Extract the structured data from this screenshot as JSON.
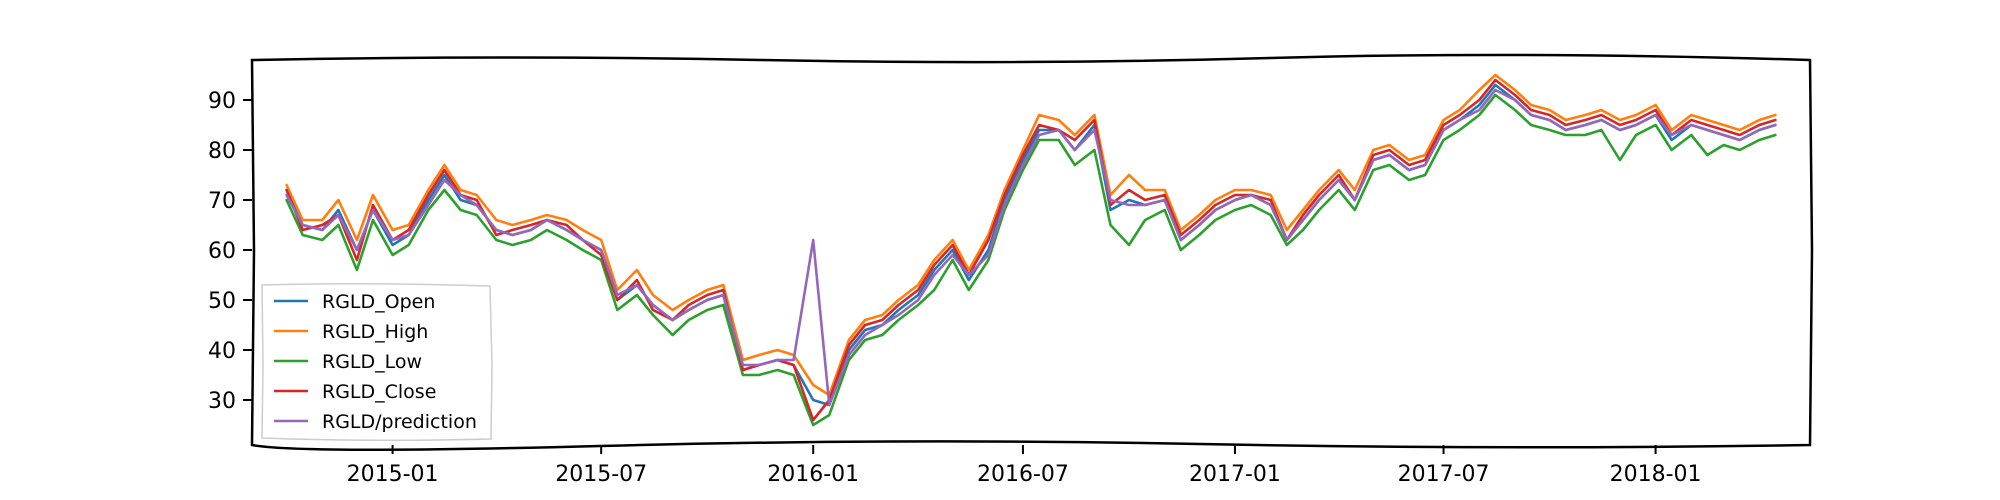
{
  "chart_data": {
    "type": "line",
    "title": "",
    "xlabel": "",
    "ylabel": "",
    "xlim": [
      "2014-09-01",
      "2018-05-15"
    ],
    "ylim": [
      21,
      98
    ],
    "grid": false,
    "legend_position": "lower-left",
    "x_tick_labels": [
      "2015-01",
      "2015-07",
      "2016-01",
      "2016-07",
      "2017-01",
      "2017-07",
      "2018-01"
    ],
    "y_tick_labels": [
      "30",
      "40",
      "50",
      "60",
      "70",
      "80",
      "90"
    ],
    "x": [
      "2014-10-01",
      "2014-10-15",
      "2014-11-01",
      "2014-11-15",
      "2014-12-01",
      "2014-12-15",
      "2015-01-01",
      "2015-01-15",
      "2015-02-01",
      "2015-02-15",
      "2015-03-01",
      "2015-03-15",
      "2015-04-01",
      "2015-04-15",
      "2015-05-01",
      "2015-05-15",
      "2015-06-01",
      "2015-06-15",
      "2015-07-01",
      "2015-07-15",
      "2015-08-01",
      "2015-08-15",
      "2015-09-01",
      "2015-09-15",
      "2015-10-01",
      "2015-10-15",
      "2015-11-01",
      "2015-11-15",
      "2015-12-01",
      "2015-12-15",
      "2016-01-01",
      "2016-01-15",
      "2016-02-01",
      "2016-02-15",
      "2016-03-01",
      "2016-03-15",
      "2016-04-01",
      "2016-04-15",
      "2016-05-01",
      "2016-05-15",
      "2016-06-01",
      "2016-06-15",
      "2016-07-01",
      "2016-07-15",
      "2016-08-01",
      "2016-08-15",
      "2016-09-01",
      "2016-09-15",
      "2016-10-01",
      "2016-10-15",
      "2016-11-01",
      "2016-11-15",
      "2016-12-01",
      "2016-12-15",
      "2017-01-01",
      "2017-01-15",
      "2017-02-01",
      "2017-02-15",
      "2017-03-01",
      "2017-03-15",
      "2017-04-01",
      "2017-04-15",
      "2017-05-01",
      "2017-05-15",
      "2017-06-01",
      "2017-06-15",
      "2017-07-01",
      "2017-07-15",
      "2017-08-01",
      "2017-08-15",
      "2017-09-01",
      "2017-09-15",
      "2017-10-01",
      "2017-10-15",
      "2017-11-01",
      "2017-11-15",
      "2017-12-01",
      "2017-12-15",
      "2018-01-01",
      "2018-01-15",
      "2018-02-01",
      "2018-02-15",
      "2018-03-01",
      "2018-03-15",
      "2018-04-01",
      "2018-04-15"
    ],
    "series": [
      {
        "name": "RGLD_Open",
        "color": "#1f77b4",
        "values": [
          72,
          65,
          64,
          68,
          60,
          68,
          61,
          63,
          70,
          75,
          70,
          69,
          64,
          63,
          64,
          66,
          64,
          62,
          60,
          50,
          53,
          49,
          46,
          48,
          50,
          51,
          36,
          37,
          38,
          37,
          30,
          29,
          40,
          44,
          45,
          48,
          51,
          56,
          60,
          54,
          60,
          70,
          78,
          84,
          84,
          80,
          85,
          68,
          70,
          69,
          70,
          62,
          65,
          68,
          70,
          71,
          69,
          62,
          66,
          70,
          74,
          70,
          78,
          79,
          76,
          77,
          84,
          86,
          89,
          93,
          90,
          87,
          86,
          84,
          85,
          86,
          84,
          85,
          87,
          82,
          85,
          84,
          83,
          82,
          84,
          85
        ]
      },
      {
        "name": "RGLD_High",
        "color": "#ff7f0e",
        "values": [
          73,
          66,
          66,
          70,
          62,
          71,
          64,
          65,
          72,
          77,
          72,
          71,
          66,
          65,
          66,
          67,
          66,
          64,
          62,
          52,
          56,
          51,
          48,
          50,
          52,
          53,
          38,
          39,
          40,
          39,
          33,
          31,
          42,
          46,
          47,
          50,
          53,
          58,
          62,
          56,
          63,
          72,
          80,
          87,
          86,
          83,
          87,
          71,
          75,
          72,
          72,
          64,
          67,
          70,
          72,
          72,
          71,
          64,
          68,
          72,
          76,
          72,
          80,
          81,
          78,
          79,
          86,
          88,
          92,
          95,
          92,
          89,
          88,
          86,
          87,
          88,
          86,
          87,
          89,
          84,
          87,
          86,
          85,
          84,
          86,
          87
        ]
      },
      {
        "name": "RGLD_Low",
        "color": "#2ca02c",
        "values": [
          70,
          63,
          62,
          65,
          56,
          66,
          59,
          61,
          68,
          72,
          68,
          67,
          62,
          61,
          62,
          64,
          62,
          60,
          58,
          48,
          51,
          47,
          43,
          46,
          48,
          49,
          35,
          35,
          36,
          35,
          25,
          27,
          38,
          42,
          43,
          46,
          49,
          52,
          58,
          52,
          58,
          68,
          76,
          82,
          82,
          77,
          80,
          65,
          61,
          66,
          68,
          60,
          63,
          66,
          68,
          69,
          67,
          61,
          64,
          68,
          72,
          68,
          76,
          77,
          74,
          75,
          82,
          84,
          87,
          91,
          88,
          85,
          84,
          83,
          83,
          84,
          78,
          83,
          85,
          80,
          83,
          79,
          81,
          80,
          82,
          83
        ]
      },
      {
        "name": "RGLD_Close",
        "color": "#d62728",
        "values": [
          72,
          64,
          65,
          67,
          58,
          69,
          62,
          64,
          71,
          76,
          71,
          70,
          63,
          64,
          65,
          66,
          65,
          62,
          59,
          50,
          54,
          48,
          46,
          49,
          51,
          52,
          36,
          37,
          38,
          37,
          26,
          30,
          41,
          45,
          46,
          49,
          52,
          57,
          61,
          55,
          62,
          71,
          79,
          85,
          84,
          82,
          86,
          69,
          72,
          70,
          71,
          63,
          66,
          69,
          71,
          71,
          70,
          62,
          67,
          71,
          75,
          70,
          79,
          80,
          77,
          78,
          85,
          87,
          90,
          94,
          91,
          88,
          87,
          85,
          86,
          87,
          85,
          86,
          88,
          83,
          86,
          85,
          84,
          83,
          85,
          86
        ]
      },
      {
        "name": "RGLD/prediction",
        "color": "#9467bd",
        "values": [
          71,
          65,
          64,
          67,
          60,
          68,
          62,
          63,
          69,
          74,
          71,
          69,
          64,
          63,
          64,
          66,
          64,
          62,
          60,
          51,
          53,
          49,
          46,
          48,
          50,
          51,
          37,
          37,
          38,
          38,
          62,
          29,
          39,
          43,
          45,
          47,
          50,
          55,
          59,
          55,
          59,
          69,
          77,
          83,
          84,
          80,
          84,
          70,
          69,
          69,
          70,
          62,
          65,
          68,
          70,
          71,
          69,
          62,
          66,
          70,
          74,
          70,
          78,
          79,
          76,
          77,
          84,
          86,
          88,
          92,
          90,
          87,
          86,
          84,
          85,
          86,
          84,
          85,
          87,
          83,
          85,
          84,
          83,
          82,
          84,
          85
        ]
      }
    ]
  }
}
